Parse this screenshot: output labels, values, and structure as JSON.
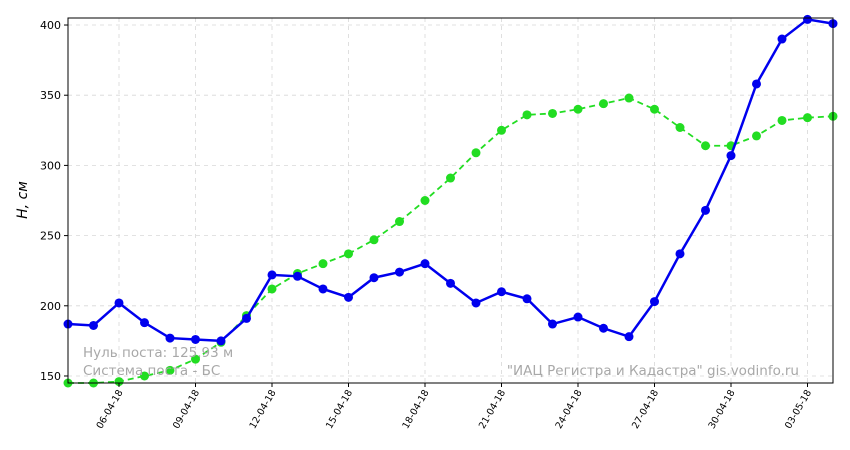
{
  "chart_data": {
    "type": "line",
    "ylabel": "H, см",
    "ylim": [
      145,
      405
    ],
    "yticks": [
      150,
      200,
      250,
      300,
      350,
      400
    ],
    "xlim": [
      0,
      30
    ],
    "xticks": [
      {
        "x": 2,
        "label": "06-04-18"
      },
      {
        "x": 5,
        "label": "09-04-18"
      },
      {
        "x": 8,
        "label": "12-04-18"
      },
      {
        "x": 11,
        "label": "15-04-18"
      },
      {
        "x": 14,
        "label": "18-04-18"
      },
      {
        "x": 17,
        "label": "21-04-18"
      },
      {
        "x": 20,
        "label": "24-04-18"
      },
      {
        "x": 23,
        "label": "27-04-18"
      },
      {
        "x": 26,
        "label": "30-04-18"
      },
      {
        "x": 29,
        "label": "03-05-18"
      }
    ],
    "grid": true,
    "series": [
      {
        "color": "#0000ee",
        "style": "solid",
        "values": [
          187,
          186,
          202,
          188,
          177,
          176,
          175,
          191,
          222,
          221,
          212,
          206,
          220,
          224,
          230,
          216,
          202,
          210,
          205,
          187,
          192,
          184,
          178,
          203,
          237,
          268,
          307,
          358,
          390,
          404,
          401
        ]
      },
      {
        "color": "#22dd22",
        "style": "dashed",
        "values": [
          145,
          145,
          146,
          150,
          154,
          162,
          174,
          193,
          212,
          223,
          230,
          237,
          247,
          260,
          275,
          291,
          309,
          325,
          336,
          337,
          340,
          344,
          348,
          340,
          327,
          314,
          314,
          321,
          332,
          334,
          335
        ]
      }
    ],
    "annotations": {
      "zero_post": "Нуль поста: 125.93 м",
      "system": "Система поста - БС",
      "source": "\"ИАЦ Регистра и Кадастра\"   gis.vodinfo.ru"
    }
  }
}
